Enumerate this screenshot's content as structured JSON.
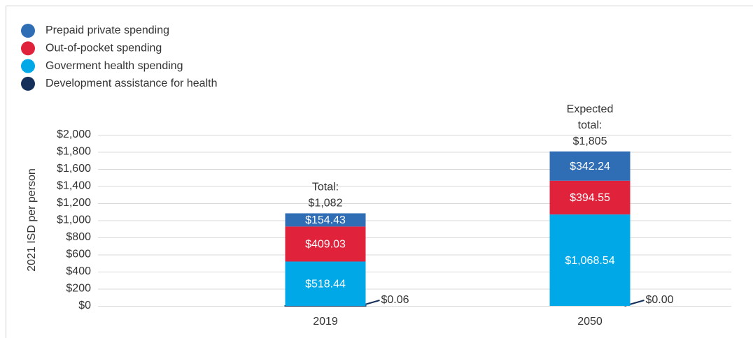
{
  "chart_data": {
    "type": "stacked_bar",
    "categories": [
      "2019",
      "2050"
    ],
    "series": [
      {
        "name": "Development assistance for health",
        "color": "#14305a",
        "values": [
          0.06,
          0.0
        ],
        "value_labels": [
          "$0.06",
          "$0.00"
        ]
      },
      {
        "name": "Goverment health spending",
        "color": "#00a8e8",
        "values": [
          518.44,
          1068.54
        ],
        "value_labels": [
          "$518.44",
          "$1,068.54"
        ]
      },
      {
        "name": "Out-of-pocket spending",
        "color": "#e0223a",
        "values": [
          409.03,
          394.55
        ],
        "value_labels": [
          "$409.03",
          "$394.55"
        ]
      },
      {
        "name": "Prepaid private spending",
        "color": "#2f6db5",
        "values": [
          154.43,
          342.24
        ],
        "value_labels": [
          "$154.43",
          "$342.24"
        ]
      }
    ],
    "legend_order": [
      3,
      2,
      1,
      0
    ],
    "total_labels": [
      [
        "Total:",
        "$1,082"
      ],
      [
        "Expected",
        "total:",
        "$1,805"
      ]
    ],
    "y_axis_label": "2021 ISD per person",
    "ylim": [
      0,
      2000
    ],
    "yticks": [
      {
        "value": 0,
        "label": "$0"
      },
      {
        "value": 200,
        "label": "$200"
      },
      {
        "value": 400,
        "label": "$400"
      },
      {
        "value": 600,
        "label": "$600"
      },
      {
        "value": 800,
        "label": "$800"
      },
      {
        "value": 1000,
        "label": "$1,000"
      },
      {
        "value": 1200,
        "label": "$1,200"
      },
      {
        "value": 1400,
        "label": "$1,400"
      },
      {
        "value": 1600,
        "label": "$1,600"
      },
      {
        "value": 1800,
        "label": "$1,800"
      },
      {
        "value": 2000,
        "label": "$2,000"
      }
    ],
    "grid": true
  }
}
